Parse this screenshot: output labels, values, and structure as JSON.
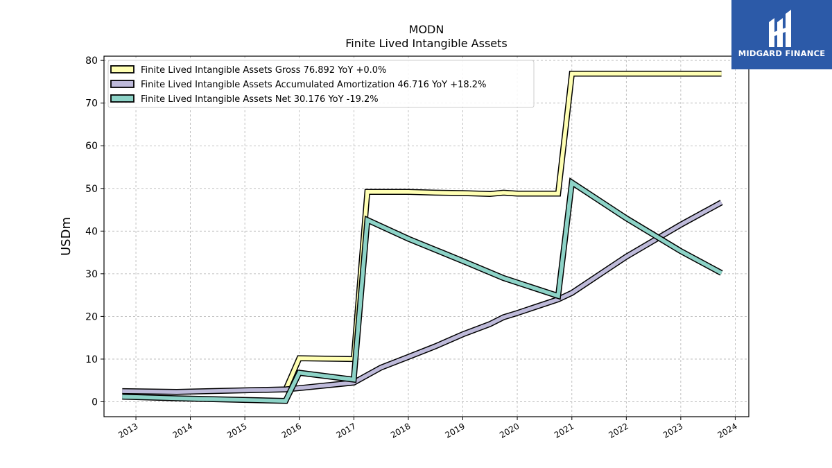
{
  "brand": {
    "name": "MIDGARD FINANCE",
    "color": "#2c5aa8"
  },
  "chart_data": {
    "type": "line",
    "title": "MODN",
    "subtitle": "Finite Lived Intangible Assets",
    "xlabel": "",
    "ylabel": "USDm",
    "ylim": [
      -3.5,
      81
    ],
    "yticks": [
      0,
      10,
      20,
      30,
      40,
      50,
      60,
      70,
      80
    ],
    "xticks": [
      "2013",
      "2014",
      "2015",
      "2016",
      "2017",
      "2018",
      "2019",
      "2020",
      "2021",
      "2022",
      "2023",
      "2024"
    ],
    "grid": true,
    "legend_position": "top-left",
    "series": [
      {
        "name": "Finite Lived Intangible Assets Gross",
        "legend": "Finite Lived Intangible Assets Gross  76.892 YoY +0.0%",
        "color": "#ffffb3",
        "points": [
          [
            "2015-10-01",
            2.8
          ],
          [
            "2016-01-01",
            10.2
          ],
          [
            "2016-12-31",
            10.0
          ],
          [
            "2017-04-01",
            49.2
          ],
          [
            "2017-07-01",
            49.2
          ],
          [
            "2018-01-01",
            49.2
          ],
          [
            "2018-07-01",
            49.0
          ],
          [
            "2019-01-01",
            48.9
          ],
          [
            "2019-07-01",
            48.7
          ],
          [
            "2019-10-01",
            49.0
          ],
          [
            "2020-01-01",
            48.8
          ],
          [
            "2020-10-01",
            48.8
          ],
          [
            "2021-01-01",
            76.892
          ],
          [
            "2023-10-01",
            76.892
          ]
        ]
      },
      {
        "name": "Finite Lived Intangible Assets Accumulated Amortization",
        "legend": "Finite Lived Intangible Assets Accumulated Amortization  46.716 YoY +18.2%",
        "color": "#bebada",
        "points": [
          [
            "2012-10-01",
            2.5
          ],
          [
            "2013-10-01",
            2.3
          ],
          [
            "2015-10-01",
            2.9
          ],
          [
            "2016-01-01",
            3.2
          ],
          [
            "2016-12-31",
            4.5
          ],
          [
            "2017-07-01",
            8.0
          ],
          [
            "2018-01-01",
            10.5
          ],
          [
            "2018-07-01",
            13.0
          ],
          [
            "2019-01-01",
            15.8
          ],
          [
            "2019-07-01",
            18.2
          ],
          [
            "2019-10-01",
            19.8
          ],
          [
            "2020-01-01",
            20.8
          ],
          [
            "2020-10-01",
            24.0
          ],
          [
            "2021-01-01",
            25.5
          ],
          [
            "2022-01-01",
            34.0
          ],
          [
            "2023-01-01",
            41.5
          ],
          [
            "2023-10-01",
            46.716
          ]
        ]
      },
      {
        "name": "Finite Lived Intangible Assets Net",
        "legend": "Finite Lived Intangible Assets Net  30.176 YoY -19.2%",
        "color": "#8dd3c7",
        "points": [
          [
            "2012-10-01",
            1.2
          ],
          [
            "2013-10-01",
            0.8
          ],
          [
            "2015-10-01",
            0.2
          ],
          [
            "2016-01-01",
            6.8
          ],
          [
            "2016-12-31",
            5.2
          ],
          [
            "2017-04-01",
            42.6
          ],
          [
            "2018-01-01",
            38.2
          ],
          [
            "2019-01-01",
            33.0
          ],
          [
            "2019-10-01",
            29.0
          ],
          [
            "2020-10-01",
            24.8
          ],
          [
            "2021-01-01",
            51.4
          ],
          [
            "2022-01-01",
            43.0
          ],
          [
            "2023-01-01",
            35.3
          ],
          [
            "2023-10-01",
            30.176
          ]
        ]
      }
    ]
  }
}
